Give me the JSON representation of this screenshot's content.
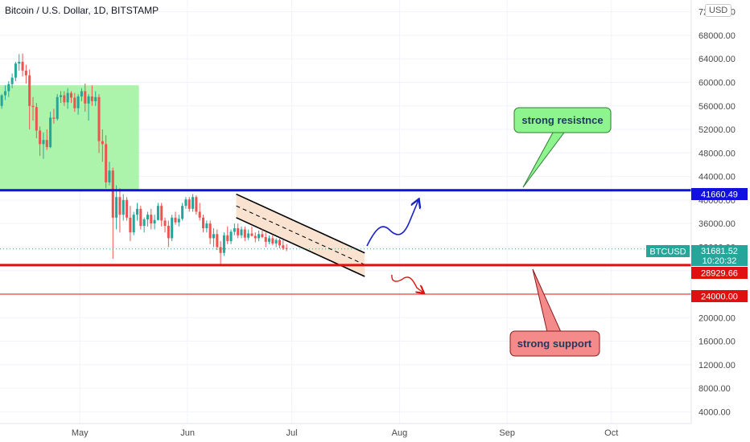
{
  "header": {
    "title": "Bitcoin / U.S. Dollar, 1D, BITSTAMP",
    "currency": "USD"
  },
  "colors": {
    "up": "#26a69a",
    "down": "#ef5350",
    "resistance": "#1010e0",
    "support": "#e01010",
    "zone": "#9ef29e",
    "ticker_tag": "#26a69a"
  },
  "price_tags": {
    "resistance": "41660.49",
    "ticker_name": "BTCUSD",
    "ticker_price": "31681.52",
    "ticker_countdown": "10:20:32",
    "support": "28929.66",
    "support2": "24000.00"
  },
  "annotations": {
    "resistance_label": "strong resistnce",
    "support_label": "strong support"
  },
  "chart_data": {
    "type": "candlestick",
    "title": "Bitcoin / U.S. Dollar, 1D, BITSTAMP",
    "ylim": [
      2000,
      74000
    ],
    "yticks": [
      4000,
      8000,
      12000,
      16000,
      20000,
      24000,
      28000,
      32000,
      36000,
      40000,
      44000,
      48000,
      52000,
      56000,
      60000,
      64000,
      68000,
      72000
    ],
    "ytick_labels": [
      "4000.00",
      "8000.00",
      "12000.00",
      "16000.00",
      "20000.00",
      "24000.00",
      "28000.00",
      "32000.00",
      "36000.00",
      "40000.00",
      "44000.00",
      "48000.00",
      "52000.00",
      "56000.00",
      "60000.00",
      "64000.00",
      "68000.00",
      "72000.00"
    ],
    "x_start": "2021-04-08",
    "x_end": "2021-10-24",
    "xticks": [
      {
        "label": "May",
        "date": "2021-05-01"
      },
      {
        "label": "Jun",
        "date": "2021-06-01"
      },
      {
        "label": "Jul",
        "date": "2021-07-01"
      },
      {
        "label": "Aug",
        "date": "2021-08-01"
      },
      {
        "label": "Sep",
        "date": "2021-09-01"
      },
      {
        "label": "Oct",
        "date": "2021-10-01"
      }
    ],
    "candles_start": "2021-04-08",
    "candles": [
      [
        56000,
        58000,
        55500,
        57800
      ],
      [
        57800,
        59500,
        57000,
        58500
      ],
      [
        58500,
        60200,
        57500,
        59700
      ],
      [
        59700,
        61500,
        59000,
        60800
      ],
      [
        60800,
        63500,
        60200,
        63200
      ],
      [
        63200,
        64800,
        62000,
        63500
      ],
      [
        63500,
        64900,
        61000,
        62000
      ],
      [
        62000,
        63000,
        59800,
        61200
      ],
      [
        61200,
        62200,
        52000,
        56000
      ],
      [
        56000,
        57500,
        53500,
        55800
      ],
      [
        55800,
        56500,
        50500,
        51800
      ],
      [
        51800,
        52500,
        47500,
        49500
      ],
      [
        49500,
        51500,
        47000,
        50200
      ],
      [
        50200,
        52000,
        48500,
        49000
      ],
      [
        49000,
        55000,
        48800,
        54000
      ],
      [
        54000,
        55500,
        53000,
        53800
      ],
      [
        53800,
        58000,
        53500,
        57500
      ],
      [
        57500,
        58500,
        56500,
        57800
      ],
      [
        57800,
        58500,
        56000,
        56600
      ],
      [
        56600,
        59000,
        55500,
        58200
      ],
      [
        58200,
        58500,
        56500,
        57400
      ],
      [
        57400,
        58200,
        55000,
        55600
      ],
      [
        55600,
        58000,
        54500,
        57600
      ],
      [
        57600,
        59000,
        56800,
        58500
      ],
      [
        58500,
        59800,
        55000,
        56400
      ],
      [
        56400,
        58000,
        53500,
        57600
      ],
      [
        57600,
        59500,
        56000,
        56800
      ],
      [
        56800,
        58500,
        56000,
        57500
      ],
      [
        57500,
        58000,
        48000,
        50000
      ],
      [
        50000,
        52000,
        46500,
        49500
      ],
      [
        49500,
        51000,
        42000,
        43000
      ],
      [
        43000,
        46500,
        42500,
        45000
      ],
      [
        45000,
        45500,
        30000,
        37000
      ],
      [
        37000,
        42500,
        35000,
        40500
      ],
      [
        40500,
        42000,
        34500,
        37500
      ],
      [
        37500,
        41000,
        36500,
        40000
      ],
      [
        40000,
        40500,
        36500,
        37000
      ],
      [
        37000,
        39000,
        33000,
        34500
      ],
      [
        34500,
        38000,
        34000,
        37500
      ],
      [
        37500,
        39500,
        36500,
        38500
      ],
      [
        38500,
        39000,
        35000,
        35600
      ],
      [
        35600,
        37000,
        34500,
        36700
      ],
      [
        36700,
        38000,
        35500,
        37500
      ],
      [
        37500,
        38500,
        35000,
        36000
      ],
      [
        36000,
        37500,
        35000,
        36600
      ],
      [
        36600,
        39500,
        36500,
        39000
      ],
      [
        39000,
        39500,
        35500,
        36500
      ],
      [
        36500,
        37000,
        34500,
        35600
      ],
      [
        35600,
        36500,
        32000,
        33500
      ],
      [
        33500,
        37500,
        33000,
        37000
      ],
      [
        37000,
        38000,
        35800,
        36200
      ],
      [
        36200,
        37500,
        35500,
        36800
      ],
      [
        36800,
        39500,
        36500,
        39000
      ],
      [
        39000,
        40500,
        38500,
        40100
      ],
      [
        40100,
        40500,
        38000,
        38500
      ],
      [
        38500,
        41000,
        38000,
        40500
      ],
      [
        40500,
        40800,
        37500,
        38000
      ],
      [
        38000,
        39500,
        36500,
        37000
      ],
      [
        37000,
        37500,
        34500,
        35200
      ],
      [
        35200,
        36500,
        34500,
        36000
      ],
      [
        36000,
        36500,
        32500,
        33500
      ],
      [
        33500,
        35200,
        32000,
        34200
      ],
      [
        34200,
        35000,
        31500,
        32000
      ],
      [
        32000,
        33000,
        28800,
        31000
      ],
      [
        31000,
        34500,
        30500,
        34000
      ],
      [
        34000,
        35500,
        32500,
        33000
      ],
      [
        33000,
        35000,
        32500,
        34600
      ],
      [
        34600,
        36000,
        34000,
        35200
      ],
      [
        35200,
        36000,
        33500,
        34000
      ],
      [
        34000,
        35500,
        33500,
        35000
      ],
      [
        35000,
        35500,
        33000,
        33600
      ],
      [
        33600,
        35000,
        33200,
        34300
      ],
      [
        34300,
        35500,
        33800,
        33900
      ],
      [
        33900,
        34500,
        32800,
        33500
      ],
      [
        33500,
        34800,
        33000,
        34200
      ],
      [
        34200,
        35000,
        33500,
        33700
      ],
      [
        33700,
        34500,
        32000,
        32900
      ],
      [
        32900,
        34000,
        32500,
        33500
      ],
      [
        33500,
        34000,
        32300,
        32600
      ],
      [
        32600,
        33500,
        32000,
        33200
      ],
      [
        33200,
        33600,
        31800,
        32300
      ],
      [
        32300,
        33200,
        31500,
        31800
      ],
      [
        31800,
        32500,
        31300,
        31681
      ]
    ],
    "channel": {
      "upper": [
        [
          "2021-06-15",
          41000
        ],
        [
          "2021-07-22",
          31000
        ]
      ],
      "lower": [
        [
          "2021-06-15",
          37000
        ],
        [
          "2021-07-22",
          27000
        ]
      ]
    },
    "horizontal_levels": [
      41660.49,
      28929.66,
      24000.0
    ],
    "highlight_zone": {
      "x0": "2021-04-08",
      "x1": "2021-05-18",
      "y0": 41660.49,
      "y1": 59500
    }
  }
}
